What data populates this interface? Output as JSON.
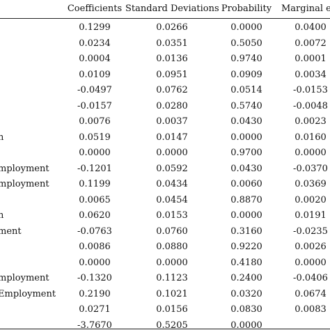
{
  "table": {
    "headers": [
      "",
      "Coefficients",
      "Standard Deviations",
      "Probability",
      "Marginal eff"
    ],
    "rows": [
      [
        "",
        "0.1299",
        "0.0266",
        "0.0000",
        "0.0400"
      ],
      [
        "",
        "0.0234",
        "0.0351",
        "0.5050",
        "0.0072"
      ],
      [
        "",
        "0.0004",
        "0.0136",
        "0.9740",
        "0.0001"
      ],
      [
        "",
        "0.0109",
        "0.0951",
        "0.0909",
        "0.0034"
      ],
      [
        "",
        "-0.0497",
        "0.0762",
        "0.0514",
        "-0.0153"
      ],
      [
        "",
        "-0.0157",
        "0.0280",
        "0.5740",
        "-0.0048"
      ],
      [
        "",
        "0.0076",
        "0.0037",
        "0.0430",
        "0.0023"
      ],
      [
        "n",
        "0.0519",
        "0.0147",
        "0.0000",
        "0.0160"
      ],
      [
        "",
        "0.0000",
        "0.0000",
        "0.9700",
        "0.0000"
      ],
      [
        "mployment",
        "-0.1201",
        "0.0592",
        "0.0430",
        "-0.0370"
      ],
      [
        "mployment",
        "0.1199",
        "0.0434",
        "0.0060",
        "0.0369"
      ],
      [
        "",
        "0.0065",
        "0.0454",
        "0.8870",
        "0.0020"
      ],
      [
        "n",
        "0.0620",
        "0.0153",
        "0.0000",
        "0.0191"
      ],
      [
        "ment",
        "-0.0763",
        "0.0760",
        "0.3160",
        "-0.0235"
      ],
      [
        "",
        "0.0086",
        "0.0880",
        "0.9220",
        "0.0026"
      ],
      [
        "",
        "0.0000",
        "0.0000",
        "0.4180",
        "0.0000"
      ],
      [
        "mployment",
        "-0.1320",
        "0.1123",
        "0.2400",
        "-0.0406"
      ],
      [
        "Employment",
        "0.2190",
        "0.1021",
        "0.0320",
        "0.0674"
      ],
      [
        "",
        "0.0271",
        "0.0156",
        "0.0830",
        "0.0083"
      ],
      [
        "",
        "-3.7670",
        "0.5205",
        "0.0000",
        ""
      ]
    ]
  }
}
